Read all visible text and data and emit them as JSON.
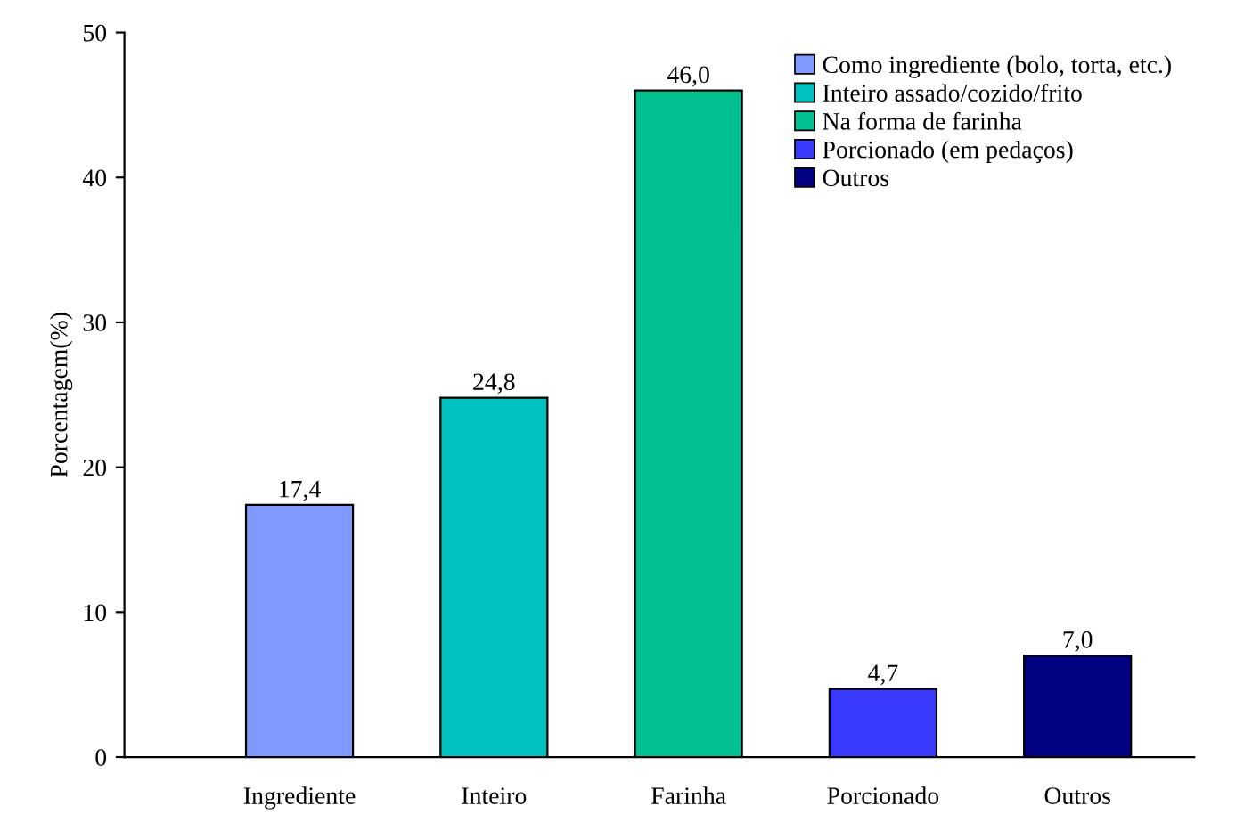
{
  "chart_data": {
    "type": "bar",
    "ylabel": "Porcentagem(%)",
    "categories": [
      "Ingrediente",
      "Inteiro",
      "Farinha",
      "Porcionado",
      "Outros"
    ],
    "series": [
      {
        "name": "Como ingrediente (bolo, torta, etc.)",
        "color": "#8099ff",
        "values": [
          17.4,
          null,
          null,
          null,
          null
        ],
        "value_labels": [
          "17,4",
          null,
          null,
          null,
          null
        ]
      },
      {
        "name": "Inteiro assado/cozido/frito",
        "color": "#00c0c0",
        "values": [
          null,
          24.8,
          null,
          null,
          null
        ],
        "value_labels": [
          null,
          "24,8",
          null,
          null,
          null
        ]
      },
      {
        "name": "Na forma de farinha",
        "color": "#00c08f",
        "values": [
          null,
          null,
          46.0,
          null,
          null
        ],
        "value_labels": [
          null,
          null,
          "46,0",
          null,
          null
        ]
      },
      {
        "name": "Porcionado (em pedaços)",
        "color": "#3a3aff",
        "values": [
          null,
          null,
          null,
          4.7,
          null
        ],
        "value_labels": [
          null,
          null,
          null,
          "4,7",
          null
        ]
      },
      {
        "name": "Outros",
        "color": "#000080",
        "values": [
          null,
          null,
          null,
          null,
          7.0
        ],
        "value_labels": [
          null,
          null,
          null,
          null,
          "7,0"
        ]
      }
    ],
    "ylim": [
      0,
      50
    ],
    "yticks": [
      0,
      10,
      20,
      30,
      40,
      50
    ],
    "grid": false,
    "legend": "top right"
  }
}
